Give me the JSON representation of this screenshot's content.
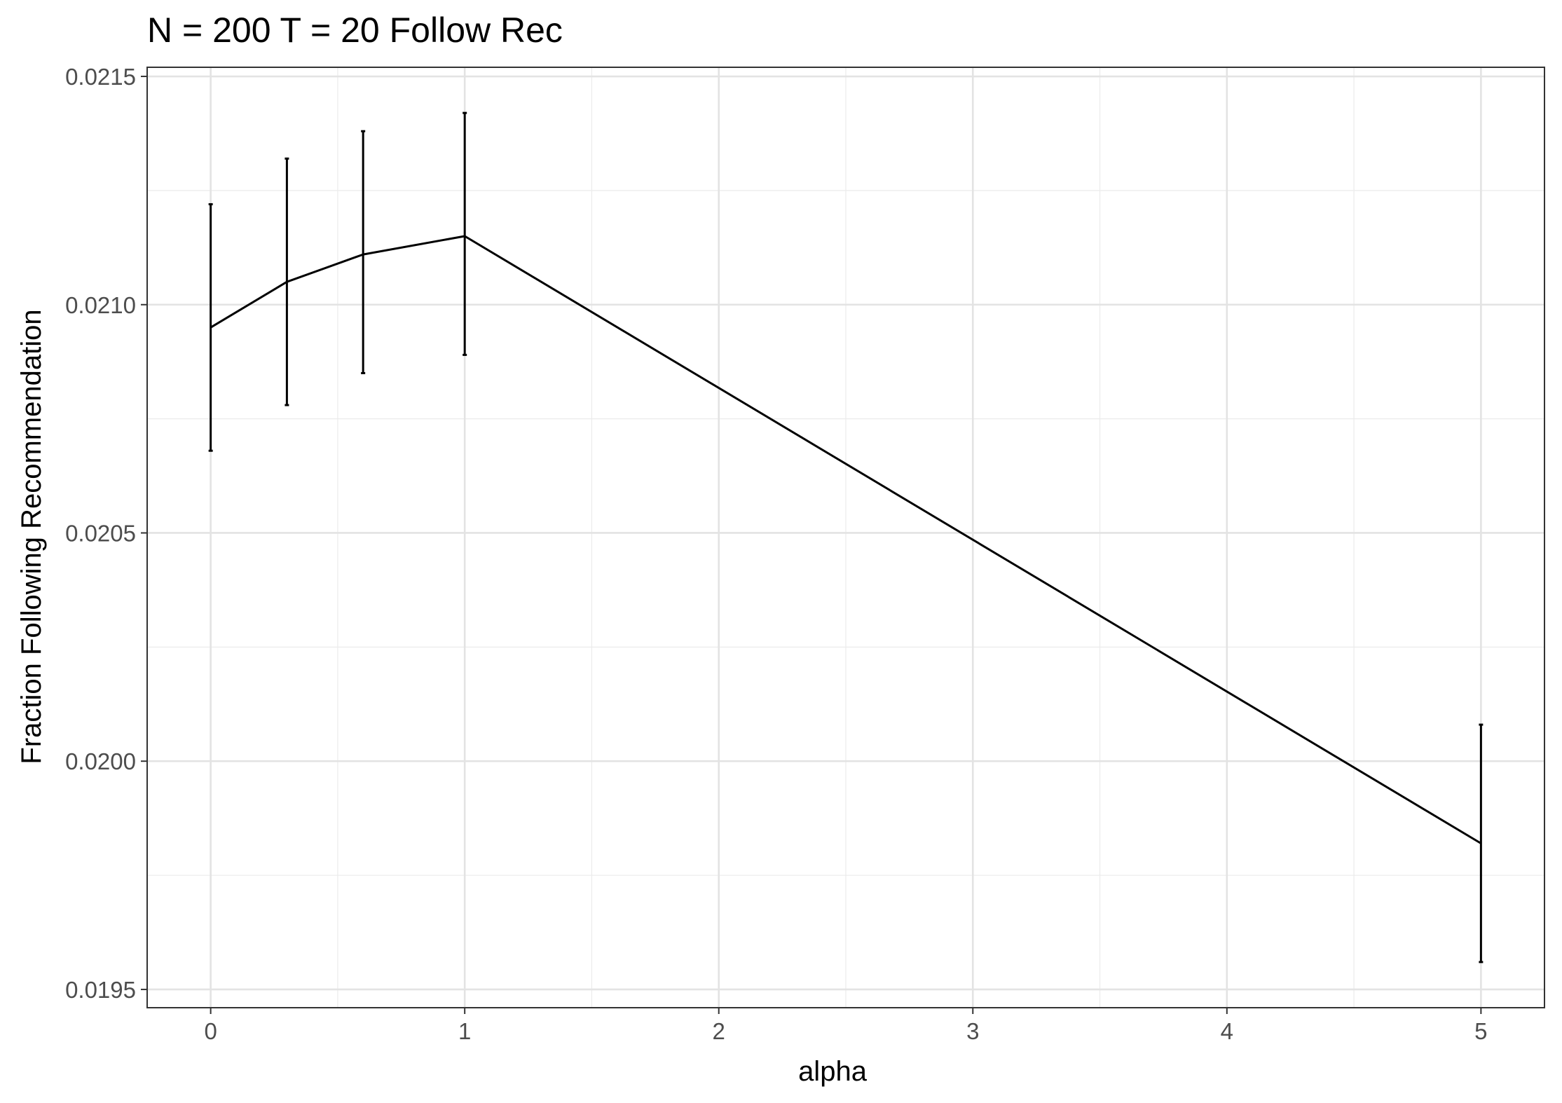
{
  "chart_data": {
    "type": "line",
    "title": "N = 200 T = 20 Follow Rec",
    "xlabel": "alpha",
    "ylabel": "Fraction Following Recommendation",
    "xlim": [
      -0.25,
      5.25
    ],
    "ylim": [
      0.01946,
      0.02152
    ],
    "x_ticks": [
      0,
      1,
      2,
      3,
      4,
      5
    ],
    "x_tick_labels": [
      "0",
      "1",
      "2",
      "3",
      "4",
      "5"
    ],
    "y_ticks": [
      0.0195,
      0.02,
      0.0205,
      0.021,
      0.0215
    ],
    "y_tick_labels": [
      "0.0195",
      "0.0200",
      "0.0205",
      "0.0210",
      "0.0215"
    ],
    "grid": true,
    "legend": "none",
    "series": [
      {
        "x": [
          0,
          0.3,
          0.6,
          1,
          5
        ],
        "y": [
          0.02095,
          0.02105,
          0.02111,
          0.02115,
          0.01982
        ],
        "error_low": [
          0.02068,
          0.02078,
          0.02085,
          0.02089,
          0.01956
        ],
        "error_high": [
          0.02122,
          0.02132,
          0.02138,
          0.02142,
          0.02008
        ]
      }
    ]
  }
}
